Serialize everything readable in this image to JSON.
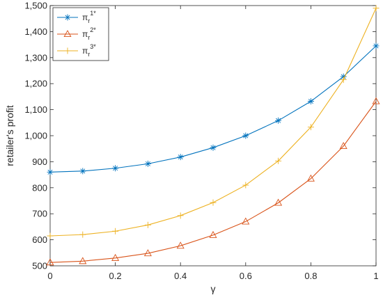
{
  "chart_data": {
    "type": "line",
    "title": "",
    "xlabel": "γ",
    "ylabel": "retailer's profit",
    "xlim": [
      0,
      1
    ],
    "ylim": [
      500,
      1500
    ],
    "xticks": [
      0,
      0.2,
      0.4,
      0.6,
      0.8,
      1
    ],
    "xtick_labels": [
      "0",
      "0.2",
      "0.4",
      "0.6",
      "0.8",
      "1"
    ],
    "yticks": [
      500,
      600,
      700,
      800,
      900,
      1000,
      1100,
      1200,
      1300,
      1400,
      1500
    ],
    "ytick_labels": [
      "500",
      "600",
      "700",
      "800",
      "900",
      "1,000",
      "1,100",
      "1,200",
      "1,300",
      "1,400",
      "1,500"
    ],
    "grid": false,
    "legend_position": "top-left",
    "x": [
      0,
      0.1,
      0.2,
      0.3,
      0.4,
      0.5,
      0.6,
      0.7,
      0.8,
      0.9,
      1
    ],
    "series": [
      {
        "name": "π",
        "name_sub": "r",
        "name_sup": "1*",
        "marker": "asterisk",
        "color": "#0072BD",
        "values": [
          860,
          864,
          875,
          892,
          918,
          954,
          1000,
          1058,
          1132,
          1227,
          1345
        ]
      },
      {
        "name": "π",
        "name_sub": "r",
        "name_sup": "2*",
        "marker": "triangle",
        "color": "#D95319",
        "values": [
          513,
          518,
          530,
          548,
          577,
          618,
          670,
          742,
          835,
          960,
          1132
        ]
      },
      {
        "name": "π",
        "name_sub": "r",
        "name_sup": "3*",
        "marker": "plus",
        "color": "#EDB120",
        "values": [
          615,
          620,
          633,
          657,
          693,
          743,
          810,
          903,
          1033,
          1215,
          1490
        ]
      }
    ]
  }
}
